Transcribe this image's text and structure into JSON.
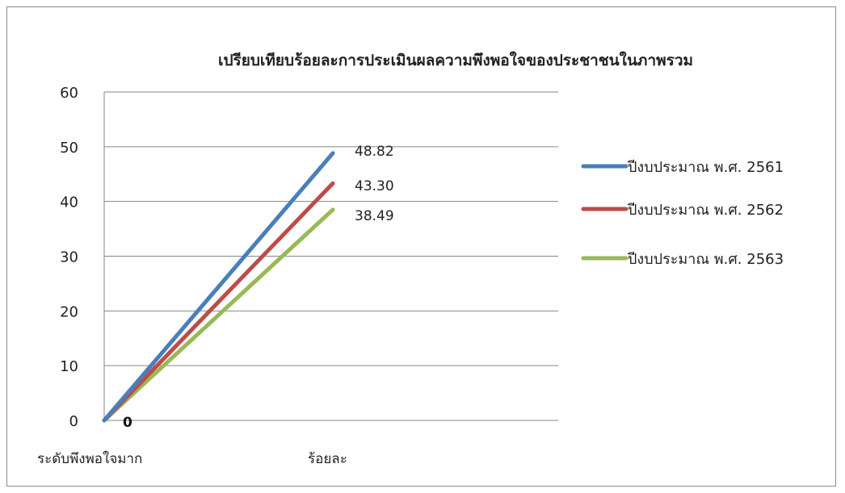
{
  "chart_data": {
    "type": "line",
    "title": "เปรียบเทียบร้อยละการประเมินผลความพึงพอใจของประชาชนในภาพรวม",
    "categories": [
      "ระดับพึงพอใจมาก",
      "ร้อยละ"
    ],
    "ylim": [
      0,
      60
    ],
    "yticks": [
      0,
      10,
      20,
      30,
      40,
      50,
      60
    ],
    "grid": true,
    "legend_position": "right",
    "series": [
      {
        "name": "ปีงบประมาณ พ.ศ. 2561",
        "values": [
          0,
          48.82
        ],
        "end_label": "48.82",
        "color": "#4a7ebb"
      },
      {
        "name": "ปีงบประมาณ พ.ศ. 2562",
        "values": [
          0,
          43.3
        ],
        "end_label": "43.30",
        "color": "#be4b48"
      },
      {
        "name": "ปีงบประมาณ พ.ศ. 2563",
        "values": [
          0,
          38.49
        ],
        "end_label": "38.49",
        "color": "#98b954"
      }
    ],
    "start_label": "0"
  }
}
